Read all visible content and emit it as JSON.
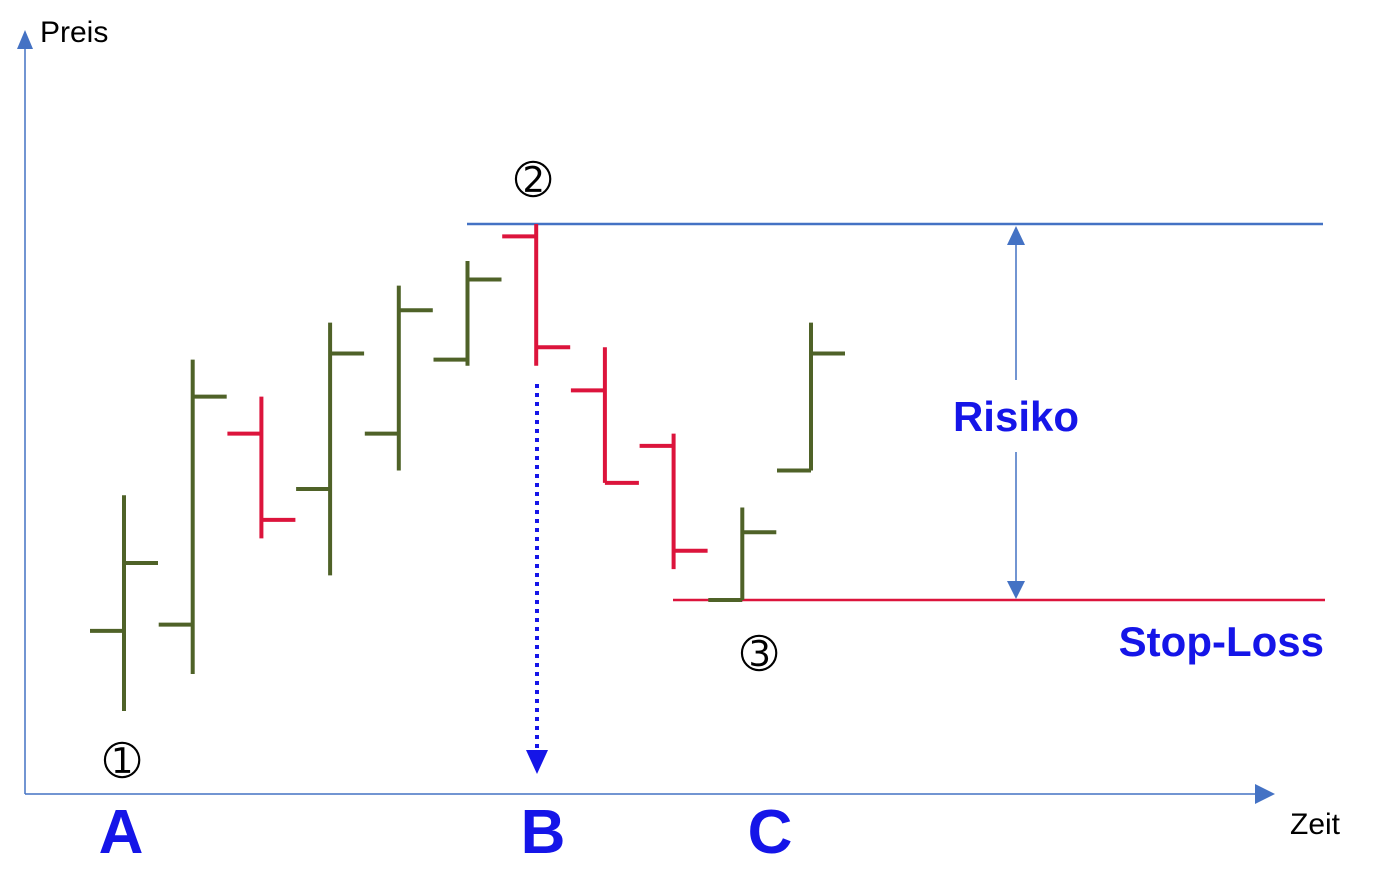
{
  "axes": {
    "y_label": "Preis",
    "x_label": "Zeit"
  },
  "markers": [
    "➀",
    "➁",
    "➂"
  ],
  "points": [
    "A",
    "B",
    "C"
  ],
  "annotations": {
    "risk_label": "Risiko",
    "stop_loss_label": "Stop-Loss"
  },
  "colors": {
    "up_bar": "#4f6228",
    "down_bar": "#dc143c",
    "axis": "#4472c4",
    "resistance_line": "#4472c4",
    "stop_loss_line": "#dc143c",
    "label_blue": "#1515e8",
    "dotted_arrow": "#1515e8"
  },
  "chart_data": {
    "type": "ohlc",
    "title": "",
    "xlabel": "Zeit",
    "ylabel": "Preis",
    "ylim": [
      0,
      100
    ],
    "bars": [
      {
        "open": 28,
        "high": 50,
        "low": 15,
        "close": 39,
        "direction": "up"
      },
      {
        "open": 29,
        "high": 72,
        "low": 21,
        "close": 66,
        "direction": "up"
      },
      {
        "open": 60,
        "high": 66,
        "low": 43,
        "close": 46,
        "direction": "down"
      },
      {
        "open": 51,
        "high": 78,
        "low": 37,
        "close": 73,
        "direction": "up"
      },
      {
        "open": 60,
        "high": 84,
        "low": 54,
        "close": 80,
        "direction": "up"
      },
      {
        "open": 72,
        "high": 88,
        "low": 71,
        "close": 85,
        "direction": "up"
      },
      {
        "open": 92,
        "high": 94,
        "low": 71,
        "close": 74,
        "direction": "down"
      },
      {
        "open": 67,
        "high": 74,
        "low": 52,
        "close": 52,
        "direction": "down"
      },
      {
        "open": 58,
        "high": 60,
        "low": 38,
        "close": 41,
        "direction": "down"
      },
      {
        "open": 33,
        "high": 48,
        "low": 33,
        "close": 44,
        "direction": "up"
      },
      {
        "open": 54,
        "high": 78,
        "low": 54,
        "close": 73,
        "direction": "up"
      }
    ],
    "levels": {
      "resistance": 94,
      "stop_loss": 33
    },
    "annotations": [
      "Risiko",
      "Stop-Loss"
    ]
  }
}
